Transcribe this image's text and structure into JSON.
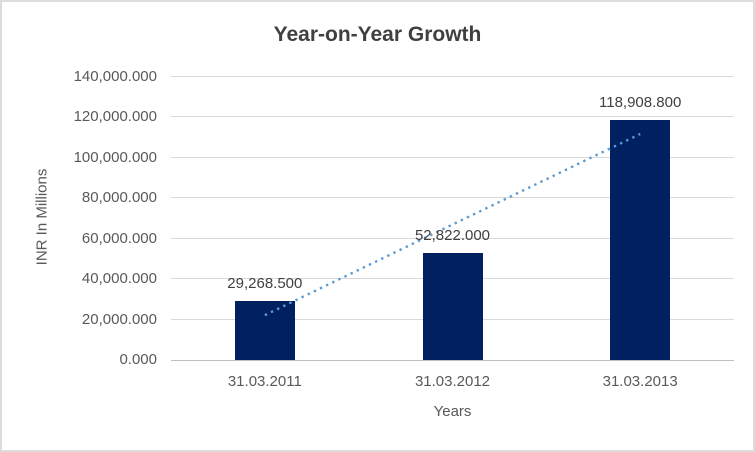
{
  "chart_data": {
    "type": "bar",
    "title": "Year-on-Year Growth",
    "xlabel": "Years",
    "ylabel": "INR In Millions",
    "categories": [
      "31.03.2011",
      "31.03.2012",
      "31.03.2013"
    ],
    "values": [
      29268.5,
      52822.0,
      118908.8
    ],
    "value_labels": [
      "29,268.500",
      "52,822.000",
      "118,908.800"
    ],
    "ylim": [
      0,
      140000
    ],
    "ytick_step": 20000,
    "ytick_labels": [
      "0.000",
      "20,000.000",
      "40,000.000",
      "60,000.000",
      "80,000.000",
      "100,000.000",
      "120,000.000",
      "140,000.000"
    ],
    "grid": true,
    "legend_position": "none",
    "trendline": {
      "type": "linear",
      "style": "dotted",
      "color": "#5b9bd5"
    },
    "colors": {
      "bar_fill": "#002060",
      "title_text": "#404040",
      "axis_text": "#595959",
      "data_label_text": "#404040",
      "gridline": "#d9d9d9",
      "axis_line": "#bfbfbf",
      "chart_border": "#dcdcdc",
      "background": "#ffffff"
    }
  }
}
